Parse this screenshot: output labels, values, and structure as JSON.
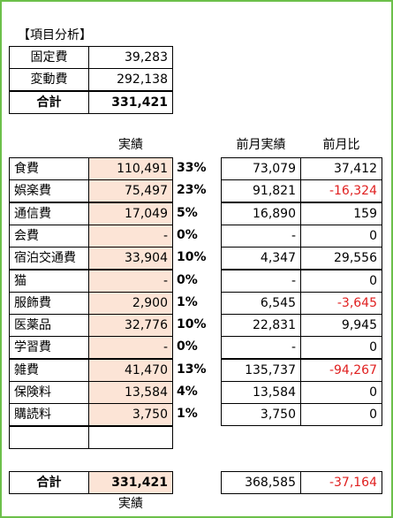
{
  "title": "【項目分析】",
  "summary": {
    "rows": [
      {
        "label": "固定費",
        "value": "39,283"
      },
      {
        "label": "変動費",
        "value": "292,138"
      },
      {
        "label": "合計",
        "value": "331,421"
      }
    ]
  },
  "headers": {
    "actual": "実績",
    "prev": "前月実績",
    "diff": "前月比"
  },
  "items": [
    {
      "label": "食費",
      "actual": "110,491",
      "pct": "33%",
      "prev": "73,079",
      "diff": "37,412"
    },
    {
      "label": "娯楽費",
      "actual": "75,497",
      "pct": "23%",
      "prev": "91,821",
      "diff": "-16,324"
    },
    {
      "label": "通信費",
      "actual": "17,049",
      "pct": "5%",
      "prev": "16,890",
      "diff": "159"
    },
    {
      "label": "会費",
      "actual": "-",
      "pct": "0%",
      "prev": "-",
      "diff": "0"
    },
    {
      "label": "宿泊交通費",
      "actual": "33,904",
      "pct": "10%",
      "prev": "4,347",
      "diff": "29,556"
    },
    {
      "label": "猫",
      "actual": "-",
      "pct": "0%",
      "prev": "-",
      "diff": "0"
    },
    {
      "label": "服飾費",
      "actual": "2,900",
      "pct": "1%",
      "prev": "6,545",
      "diff": "-3,645"
    },
    {
      "label": "医薬品",
      "actual": "32,776",
      "pct": "10%",
      "prev": "22,831",
      "diff": "9,945"
    },
    {
      "label": "学習費",
      "actual": "-",
      "pct": "0%",
      "prev": "-",
      "diff": "0"
    },
    {
      "label": "雑費",
      "actual": "41,470",
      "pct": "13%",
      "prev": "135,737",
      "diff": "-94,267"
    },
    {
      "label": "保険料",
      "actual": "13,584",
      "pct": "4%",
      "prev": "13,584",
      "diff": "0"
    },
    {
      "label": "購読料",
      "actual": "3,750",
      "pct": "1%",
      "prev": "3,750",
      "diff": "0"
    }
  ],
  "total": {
    "label": "合計",
    "actual": "331,421",
    "prev": "368,585",
    "diff": "-37,164",
    "caption": "実績"
  }
}
